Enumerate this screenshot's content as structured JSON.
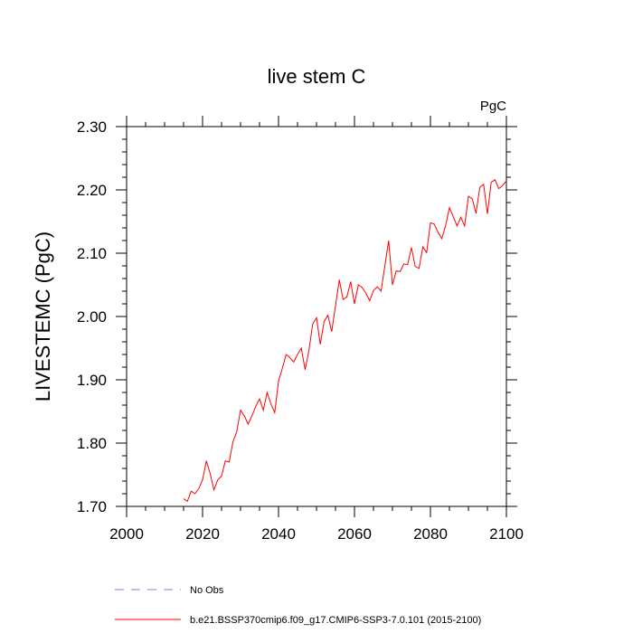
{
  "chart_data": {
    "type": "line",
    "title": "live stem C",
    "units_label": "PgC",
    "ylabel": "LIVESTEMC  (PgC)",
    "xlabel": "",
    "xlim": [
      2000,
      2100
    ],
    "ylim": [
      1.7,
      2.3
    ],
    "x_ticks": [
      2000,
      2020,
      2040,
      2060,
      2080,
      2100
    ],
    "x_tick_labels": [
      "2000",
      "2020",
      "2040",
      "2060",
      "2080",
      "2100"
    ],
    "y_ticks": [
      1.7,
      1.8,
      1.9,
      2.0,
      2.1,
      2.2,
      2.3
    ],
    "y_tick_labels": [
      "1.70",
      "1.80",
      "1.90",
      "2.00",
      "2.10",
      "2.20",
      "2.30"
    ],
    "grid": false,
    "legend_position": "bottom",
    "series": [
      {
        "name": "b.e21.BSSP370cmip6.f09_g17.CMIP6-SSP3-7.0.101 (2015-2100)",
        "color": "#ff0000",
        "style": "solid",
        "x": [
          2015,
          2016,
          2017,
          2018,
          2019,
          2020,
          2021,
          2022,
          2023,
          2024,
          2025,
          2026,
          2027,
          2028,
          2029,
          2030,
          2031,
          2032,
          2033,
          2034,
          2035,
          2036,
          2037,
          2038,
          2039,
          2040,
          2041,
          2042,
          2043,
          2044,
          2045,
          2046,
          2047,
          2048,
          2049,
          2050,
          2051,
          2052,
          2053,
          2054,
          2055,
          2056,
          2057,
          2058,
          2059,
          2060,
          2061,
          2062,
          2063,
          2064,
          2065,
          2066,
          2067,
          2068,
          2069,
          2070,
          2071,
          2072,
          2073,
          2074,
          2075,
          2076,
          2077,
          2078,
          2079,
          2080,
          2081,
          2082,
          2083,
          2084,
          2085,
          2086,
          2087,
          2088,
          2089,
          2090,
          2091,
          2092,
          2093,
          2094,
          2095,
          2096,
          2097,
          2098,
          2099,
          2100
        ],
        "y": [
          1.712,
          1.708,
          1.724,
          1.72,
          1.728,
          1.742,
          1.772,
          1.752,
          1.726,
          1.742,
          1.748,
          1.772,
          1.77,
          1.802,
          1.818,
          1.852,
          1.843,
          1.83,
          1.843,
          1.858,
          1.87,
          1.852,
          1.88,
          1.862,
          1.848,
          1.898,
          1.918,
          1.94,
          1.935,
          1.928,
          1.94,
          1.95,
          1.916,
          1.946,
          1.988,
          1.998,
          1.956,
          1.992,
          2.002,
          1.976,
          2.017,
          2.058,
          2.027,
          2.031,
          2.055,
          2.02,
          2.05,
          2.046,
          2.037,
          2.025,
          2.041,
          2.047,
          2.04,
          2.08,
          2.12,
          2.05,
          2.072,
          2.071,
          2.083,
          2.082,
          2.109,
          2.079,
          2.076,
          2.11,
          2.101,
          2.148,
          2.146,
          2.133,
          2.123,
          2.144,
          2.172,
          2.158,
          2.143,
          2.157,
          2.143,
          2.19,
          2.186,
          2.163,
          2.204,
          2.209,
          2.162,
          2.212,
          2.216,
          2.202,
          2.207,
          2.214
        ]
      },
      {
        "name": "No Obs",
        "color": "#7b7bf0",
        "style": "dashed",
        "x": [],
        "y": []
      }
    ]
  }
}
